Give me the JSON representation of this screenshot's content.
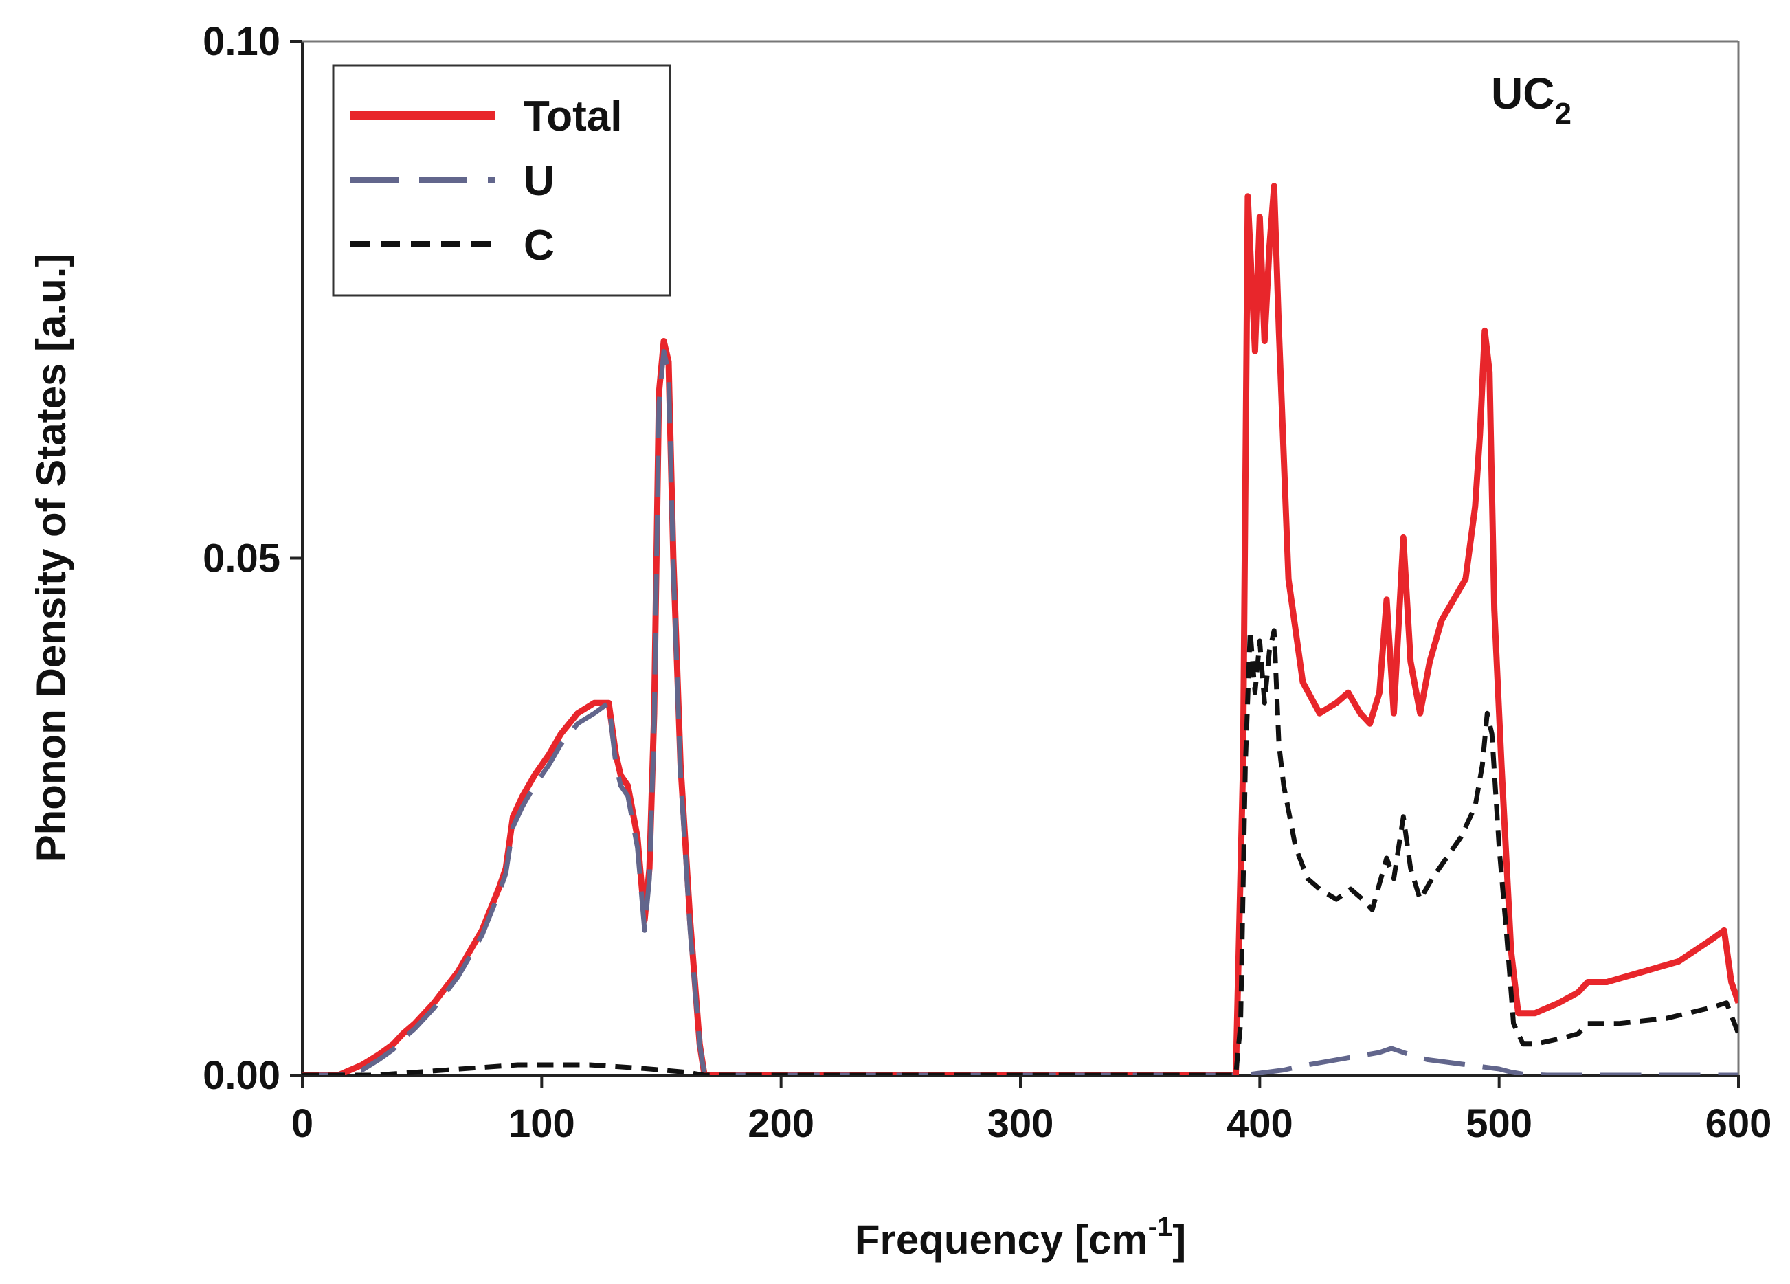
{
  "chart_data": {
    "type": "line",
    "title": "",
    "xlabel": "Frequency [cm",
    "xlabel_sup": "-1",
    "xlabel_end": "]",
    "ylabel": "Phonon Density of States [a.u.]",
    "xlim": [
      0,
      600
    ],
    "ylim": [
      0,
      0.1
    ],
    "xticks": [
      0,
      100,
      200,
      300,
      400,
      500,
      600
    ],
    "xtick_labels": [
      "0",
      "100",
      "200",
      "300",
      "400",
      "500",
      "600"
    ],
    "yticks": [
      0,
      0.05,
      0.1
    ],
    "ytick_labels": [
      "0.00",
      "0.05",
      "0.10"
    ],
    "grid": false,
    "legend_position": "top-left",
    "annotation": {
      "text": "UC",
      "sub": "2",
      "position": "top-right"
    },
    "series": [
      {
        "name": "Total",
        "color": "#e8262b",
        "style": "solid",
        "x": [
          0,
          15,
          25,
          32,
          38,
          42,
          47,
          55,
          65,
          75,
          82,
          85,
          88,
          92,
          97,
          103,
          108,
          115,
          122,
          128,
          131,
          133,
          136,
          140,
          143,
          145,
          147,
          149,
          151,
          153,
          155,
          158,
          162,
          166,
          168,
          175,
          200,
          250,
          300,
          350,
          390,
          393,
          395,
          396,
          398,
          400,
          402,
          404,
          406,
          408,
          412,
          418,
          425,
          432,
          437,
          442,
          446,
          450,
          453,
          456,
          460,
          463,
          467,
          471,
          476,
          481,
          486,
          490,
          492,
          494,
          496,
          498,
          501,
          505,
          508,
          515,
          525,
          533,
          537,
          545,
          560,
          575,
          588,
          594,
          597,
          600
        ],
        "y": [
          0,
          0,
          0.001,
          0.002,
          0.003,
          0.004,
          0.005,
          0.007,
          0.01,
          0.014,
          0.018,
          0.02,
          0.025,
          0.027,
          0.029,
          0.031,
          0.033,
          0.035,
          0.036,
          0.036,
          0.031,
          0.029,
          0.028,
          0.023,
          0.015,
          0.02,
          0.035,
          0.066,
          0.071,
          0.069,
          0.05,
          0.03,
          0.015,
          0.003,
          0,
          0,
          0,
          0,
          0,
          0,
          0,
          0.03,
          0.085,
          0.08,
          0.07,
          0.083,
          0.071,
          0.08,
          0.086,
          0.072,
          0.048,
          0.038,
          0.035,
          0.036,
          0.037,
          0.035,
          0.034,
          0.037,
          0.046,
          0.035,
          0.052,
          0.04,
          0.035,
          0.04,
          0.044,
          0.046,
          0.048,
          0.055,
          0.062,
          0.072,
          0.068,
          0.045,
          0.03,
          0.012,
          0.006,
          0.006,
          0.007,
          0.008,
          0.009,
          0.009,
          0.01,
          0.011,
          0.013,
          0.014,
          0.009,
          0.007
        ]
      },
      {
        "name": "U",
        "color": "#62668c",
        "style": "longdash",
        "x": [
          0,
          15,
          25,
          32,
          38,
          42,
          47,
          55,
          65,
          75,
          82,
          85,
          88,
          92,
          97,
          103,
          108,
          115,
          122,
          128,
          131,
          133,
          136,
          140,
          143,
          145,
          147,
          149,
          151,
          153,
          155,
          158,
          162,
          166,
          168,
          175,
          200,
          300,
          390,
          393,
          400,
          410,
          420,
          430,
          440,
          450,
          455,
          460,
          465,
          470,
          480,
          490,
          500,
          505,
          510,
          520,
          600
        ],
        "y": [
          0,
          0,
          0.0005,
          0.0015,
          0.0025,
          0.0035,
          0.0045,
          0.0065,
          0.0095,
          0.0135,
          0.0175,
          0.0195,
          0.024,
          0.026,
          0.028,
          0.03,
          0.032,
          0.034,
          0.035,
          0.036,
          0.03,
          0.028,
          0.027,
          0.022,
          0.014,
          0.019,
          0.034,
          0.065,
          0.07,
          0.068,
          0.049,
          0.029,
          0.014,
          0.003,
          0,
          0,
          0,
          0,
          0,
          0,
          0.0002,
          0.0005,
          0.001,
          0.0014,
          0.0018,
          0.0022,
          0.0026,
          0.0022,
          0.0018,
          0.0015,
          0.0012,
          0.0009,
          0.0006,
          0.0003,
          0.0001,
          0,
          0
        ]
      },
      {
        "name": "C",
        "color": "#111111",
        "style": "dash",
        "x": [
          0,
          30,
          60,
          90,
          100,
          120,
          140,
          160,
          168,
          175,
          200,
          300,
          390,
          392,
          394,
          396,
          398,
          400,
          402,
          404,
          406,
          408,
          410,
          415,
          420,
          425,
          432,
          438,
          443,
          447,
          450,
          453,
          456,
          460,
          463,
          467,
          472,
          478,
          484,
          490,
          493,
          495,
          497,
          500,
          503,
          506,
          510,
          515,
          525,
          533,
          537,
          550,
          570,
          588,
          595,
          600
        ],
        "y": [
          0,
          0,
          0.0005,
          0.001,
          0.001,
          0.001,
          0.0007,
          0.0003,
          0,
          0,
          0,
          0,
          0,
          0.005,
          0.03,
          0.043,
          0.037,
          0.042,
          0.036,
          0.041,
          0.043,
          0.032,
          0.028,
          0.022,
          0.019,
          0.018,
          0.017,
          0.018,
          0.017,
          0.016,
          0.0185,
          0.021,
          0.019,
          0.025,
          0.02,
          0.017,
          0.019,
          0.021,
          0.023,
          0.026,
          0.03,
          0.035,
          0.033,
          0.022,
          0.014,
          0.005,
          0.003,
          0.003,
          0.0035,
          0.004,
          0.005,
          0.005,
          0.0055,
          0.0065,
          0.007,
          0.004
        ]
      }
    ]
  }
}
